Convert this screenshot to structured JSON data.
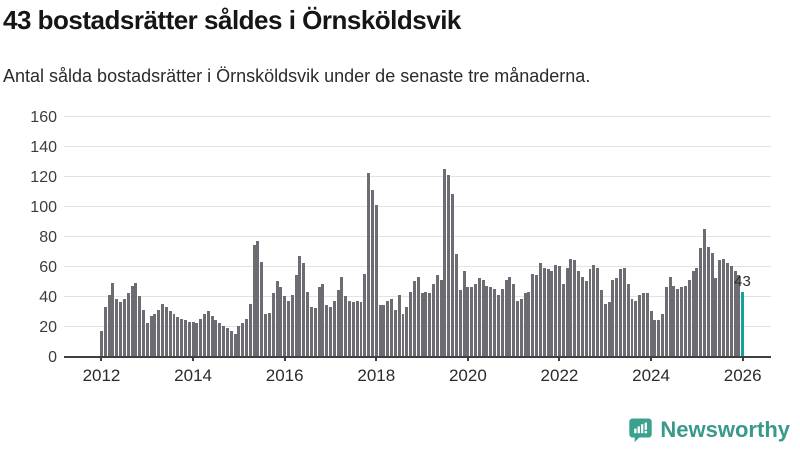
{
  "header": {
    "title": "43 bostadsrätter såldes i Örnsköldsvik",
    "subtitle": "Antal sålda bostadsrätter i Örnsköldsvik under de senaste tre månaderna."
  },
  "chart_data": {
    "type": "bar",
    "x_start": "2012-01",
    "x_interval": "month",
    "values": [
      17,
      33,
      41,
      49,
      38,
      36,
      38,
      42,
      47,
      49,
      40,
      31,
      22,
      27,
      28,
      31,
      35,
      33,
      30,
      28,
      26,
      25,
      24,
      23,
      23,
      22,
      25,
      28,
      30,
      27,
      24,
      22,
      20,
      19,
      17,
      15,
      20,
      22,
      25,
      35,
      74,
      77,
      63,
      28,
      29,
      42,
      50,
      46,
      40,
      37,
      41,
      54,
      67,
      62,
      43,
      33,
      32,
      46,
      48,
      34,
      33,
      37,
      44,
      53,
      40,
      37,
      36,
      37,
      36,
      55,
      122,
      111,
      101,
      34,
      34,
      37,
      38,
      31,
      41,
      28,
      33,
      43,
      50,
      53,
      42,
      43,
      42,
      48,
      54,
      51,
      125,
      121,
      108,
      68,
      44,
      57,
      46,
      46,
      48,
      52,
      51,
      47,
      46,
      45,
      41,
      45,
      51,
      53,
      48,
      37,
      38,
      42,
      43,
      55,
      54,
      62,
      59,
      58,
      57,
      61,
      60,
      48,
      59,
      65,
      64,
      57,
      53,
      50,
      58,
      61,
      59,
      44,
      35,
      36,
      51,
      52,
      58,
      59,
      48,
      38,
      37,
      41,
      42,
      42,
      30,
      24,
      24,
      28,
      46,
      53,
      47,
      45,
      46,
      47,
      51,
      57,
      59,
      72,
      85,
      73,
      69,
      52,
      64,
      65,
      62,
      60,
      57,
      54,
      43
    ],
    "ylim": [
      0,
      160
    ],
    "yticks": [
      0,
      20,
      40,
      60,
      80,
      100,
      120,
      140,
      160
    ],
    "xticks": [
      {
        "index": 0,
        "label": "2012"
      },
      {
        "index": 24,
        "label": "2014"
      },
      {
        "index": 48,
        "label": "2016"
      },
      {
        "index": 72,
        "label": "2018"
      },
      {
        "index": 96,
        "label": "2020"
      },
      {
        "index": 120,
        "label": "2022"
      },
      {
        "index": 144,
        "label": "2024"
      },
      {
        "index": 168,
        "label": "2026"
      }
    ],
    "highlight_index": 168,
    "annotation": {
      "text": "43",
      "index": 168,
      "value": 43
    },
    "grid": true,
    "legend": false
  },
  "footer": {
    "brand": "Newsworthy"
  },
  "colors": {
    "bar": "#6e6c73",
    "highlight": "#18a19b",
    "grid": "#e3e3e3",
    "axis": "#3f3f3f",
    "title": "#161616",
    "text": "#2b2b2b",
    "brand": "#399a8b",
    "brand_icon": "#3ba18f"
  }
}
